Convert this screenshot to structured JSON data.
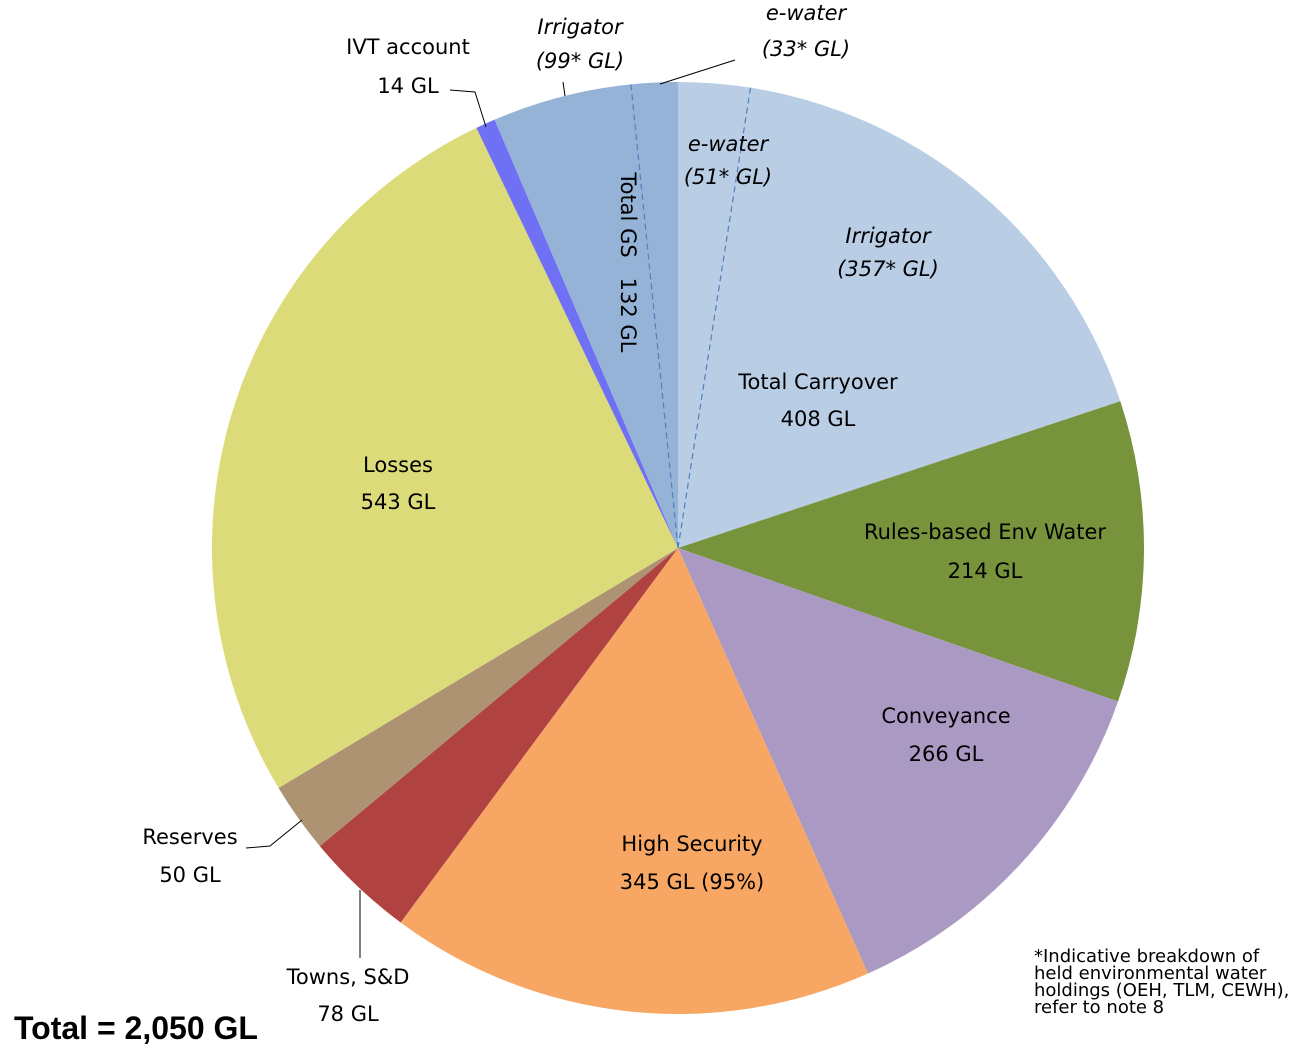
{
  "chart_data": {
    "type": "pie",
    "categories": [
      "Total Carryover",
      "Rules-based Env Water",
      "Conveyance",
      "High Security",
      "Towns, S&D",
      "Reserves",
      "Losses",
      "IVT account",
      "Total GS"
    ],
    "values": [
      408,
      214,
      266,
      345,
      78,
      50,
      543,
      14,
      132
    ],
    "value_labels": [
      "408 GL",
      "214 GL",
      "266 GL",
      "345 GL (95%)",
      "78 GL",
      "50 GL",
      "543 GL",
      "14 GL",
      "132 GL"
    ],
    "colors": [
      "#b9cde5",
      "#77933c",
      "#aa99c3",
      "#f7a763",
      "#b04241",
      "#ae9373",
      "#dcdb7a",
      "#7070f5",
      "#95b3d7"
    ],
    "breakdown": [
      {
        "parent": 0,
        "names": [
          "e-water",
          "Irrigator"
        ],
        "values": [
          51,
          357
        ],
        "value_labels": [
          "(51* GL)",
          "(357* GL)"
        ]
      },
      {
        "parent": 8,
        "names": [
          "Irrigator",
          "e-water"
        ],
        "values": [
          99,
          33
        ],
        "value_labels": [
          "(99* GL)",
          "(33* GL)"
        ]
      }
    ],
    "total_label": "Total = 2,050 GL",
    "note": "*Indicative breakdown of held environmental water holdings (OEH, TLM, CEWH), refer to note 8"
  }
}
